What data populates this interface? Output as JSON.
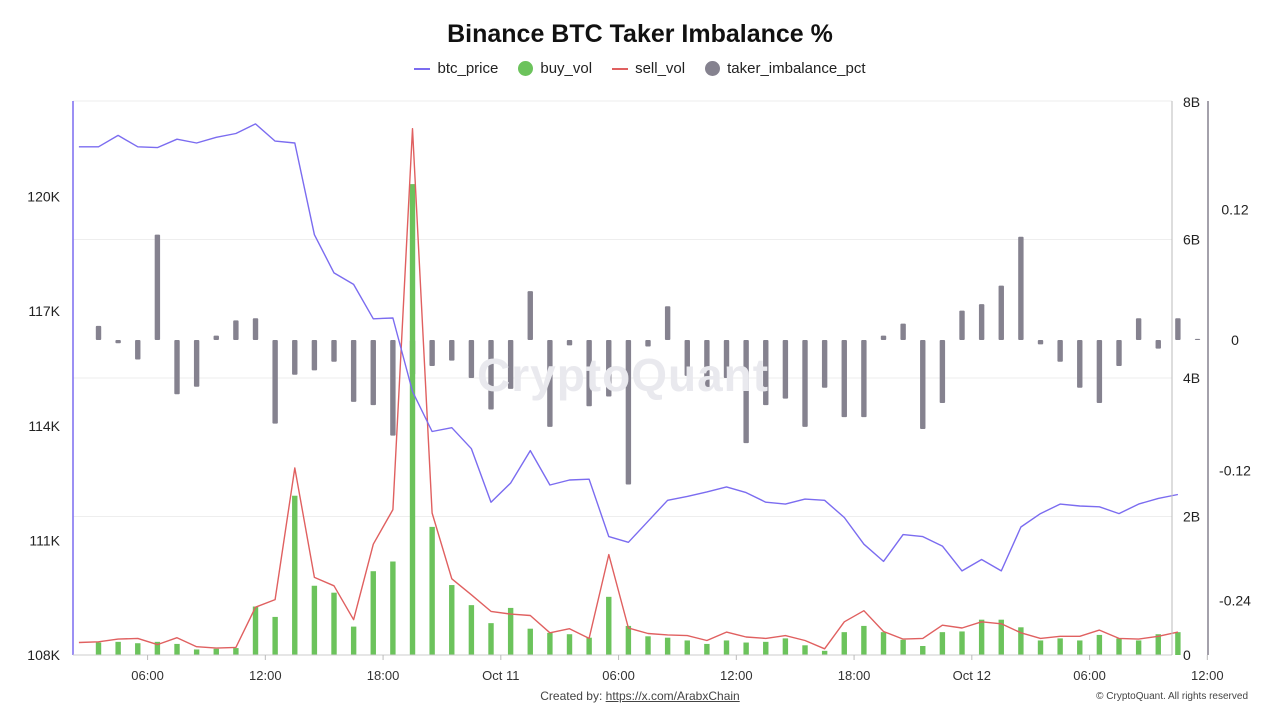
{
  "page": {
    "created_label": "Created by:",
    "created_link": "https://x.com/ArabxChain",
    "copyright": "© CryptoQuant. All rights reserved",
    "watermark": "CryptoQuant"
  },
  "colors": {
    "btc_price": "#7b6cf0",
    "buy_vol": "#6cc35c",
    "sell_vol": "#e06060",
    "taker_imbalance_pct": "#85828f"
  },
  "chart_data": {
    "type": "combo",
    "title": "Binance BTC Taker Imbalance %",
    "legend_position": "top-center",
    "legend": [
      {
        "name": "btc_price",
        "marker": "line"
      },
      {
        "name": "buy_vol",
        "marker": "dot"
      },
      {
        "name": "sell_vol",
        "marker": "line"
      },
      {
        "name": "taker_imbalance_pct",
        "marker": "dot"
      }
    ],
    "grid": true,
    "x_ticks": [
      "06:00",
      "12:00",
      "18:00",
      "Oct 11",
      "06:00",
      "12:00",
      "18:00",
      "Oct 12",
      "06:00",
      "12:00"
    ],
    "x_hours_range": [
      2.2,
      58.2
    ],
    "x_tick_start_hour": 6,
    "x_tick_step_hours": 6,
    "y_left": {
      "ticks": [
        "108K",
        "111K",
        "114K",
        "117K",
        "120K"
      ],
      "values": [
        108000,
        111000,
        114000,
        117000,
        120000
      ],
      "range": [
        108000,
        122500
      ]
    },
    "y_mid": {
      "ticks": [
        "0",
        "2B",
        "4B",
        "6B",
        "8B"
      ],
      "values": [
        0,
        2000000000,
        4000000000,
        6000000000,
        8000000000
      ],
      "range": [
        0,
        8000000000
      ]
    },
    "y_right": {
      "ticks": [
        "-0.24",
        "-0.12",
        "0",
        "0.12"
      ],
      "values": [
        -0.24,
        -0.12,
        0,
        0.12
      ],
      "range": [
        -0.29,
        0.22
      ]
    },
    "series": [
      {
        "name": "btc_price",
        "type": "line",
        "axis": "left",
        "x_start_hour": 2.5,
        "x_step_hours": 1,
        "values": [
          121300,
          121300,
          121600,
          121300,
          121280,
          121500,
          121400,
          121550,
          121650,
          121900,
          121450,
          121400,
          119000,
          118000,
          117700,
          116800,
          116820,
          114900,
          113850,
          113950,
          113400,
          112000,
          112500,
          113350,
          112450,
          112580,
          112600,
          111100,
          110950,
          111500,
          112050,
          112150,
          112270,
          112400,
          112250,
          112000,
          111950,
          112080,
          112050,
          111600,
          110900,
          110450,
          111150,
          111100,
          110850,
          110200,
          110500,
          110200,
          111350,
          111700,
          111950,
          111900,
          111880,
          111700,
          111950,
          112100,
          112200
        ]
      },
      {
        "name": "buy_vol",
        "type": "bar",
        "axis": "mid",
        "x_start_hour": 3.5,
        "x_step_hours": 1,
        "values": [
          180000000,
          190000000,
          170000000,
          190000000,
          160000000,
          80000000,
          90000000,
          100000000,
          700000000,
          550000000,
          2300000000,
          1000000000,
          900000000,
          410000000,
          1210000000,
          1350000000,
          6800000000,
          1850000000,
          1010000000,
          720000000,
          460000000,
          680000000,
          380000000,
          320000000,
          300000000,
          250000000,
          840000000,
          420000000,
          270000000,
          250000000,
          210000000,
          160000000,
          210000000,
          180000000,
          190000000,
          240000000,
          140000000,
          60000000,
          330000000,
          420000000,
          330000000,
          220000000,
          130000000,
          330000000,
          340000000,
          510000000,
          510000000,
          400000000,
          210000000,
          240000000,
          210000000,
          290000000,
          240000000,
          210000000,
          300000000,
          330000000
        ]
      },
      {
        "name": "sell_vol",
        "type": "line",
        "axis": "mid",
        "x_start_hour": 2.5,
        "x_step_hours": 1,
        "values": [
          180000000,
          190000000,
          230000000,
          240000000,
          150000000,
          250000000,
          120000000,
          100000000,
          110000000,
          690000000,
          800000000,
          2700000000,
          1120000000,
          1000000000,
          510000000,
          1600000000,
          2100000000,
          7600000000,
          2050000000,
          1100000000,
          870000000,
          630000000,
          590000000,
          570000000,
          320000000,
          380000000,
          240000000,
          1450000000,
          390000000,
          310000000,
          290000000,
          280000000,
          210000000,
          330000000,
          260000000,
          240000000,
          280000000,
          210000000,
          90000000,
          480000000,
          640000000,
          340000000,
          230000000,
          240000000,
          430000000,
          390000000,
          480000000,
          450000000,
          320000000,
          240000000,
          270000000,
          270000000,
          360000000,
          240000000,
          230000000,
          270000000,
          330000000
        ]
      },
      {
        "name": "taker_imbalance_pct",
        "type": "bar",
        "axis": "right",
        "x_start_hour": 3.5,
        "x_step_hours": 1,
        "values": [
          0.013,
          -0.003,
          -0.018,
          0.097,
          -0.05,
          -0.043,
          0.004,
          0.018,
          0.02,
          -0.077,
          -0.032,
          -0.028,
          -0.02,
          -0.057,
          -0.06,
          -0.088,
          -0.032,
          -0.024,
          -0.019,
          -0.035,
          -0.064,
          -0.045,
          0.045,
          -0.08,
          -0.005,
          -0.061,
          -0.052,
          -0.133,
          -0.006,
          0.031,
          -0.033,
          -0.046,
          -0.035,
          -0.095,
          -0.06,
          -0.054,
          -0.08,
          -0.044,
          -0.071,
          -0.071,
          0.004,
          0.015,
          -0.082,
          -0.058,
          0.027,
          0.033,
          0.05,
          0.095,
          -0.004,
          -0.02,
          -0.044,
          -0.058,
          -0.024,
          0.02,
          -0.008,
          0.02,
          0.001
        ]
      }
    ]
  }
}
